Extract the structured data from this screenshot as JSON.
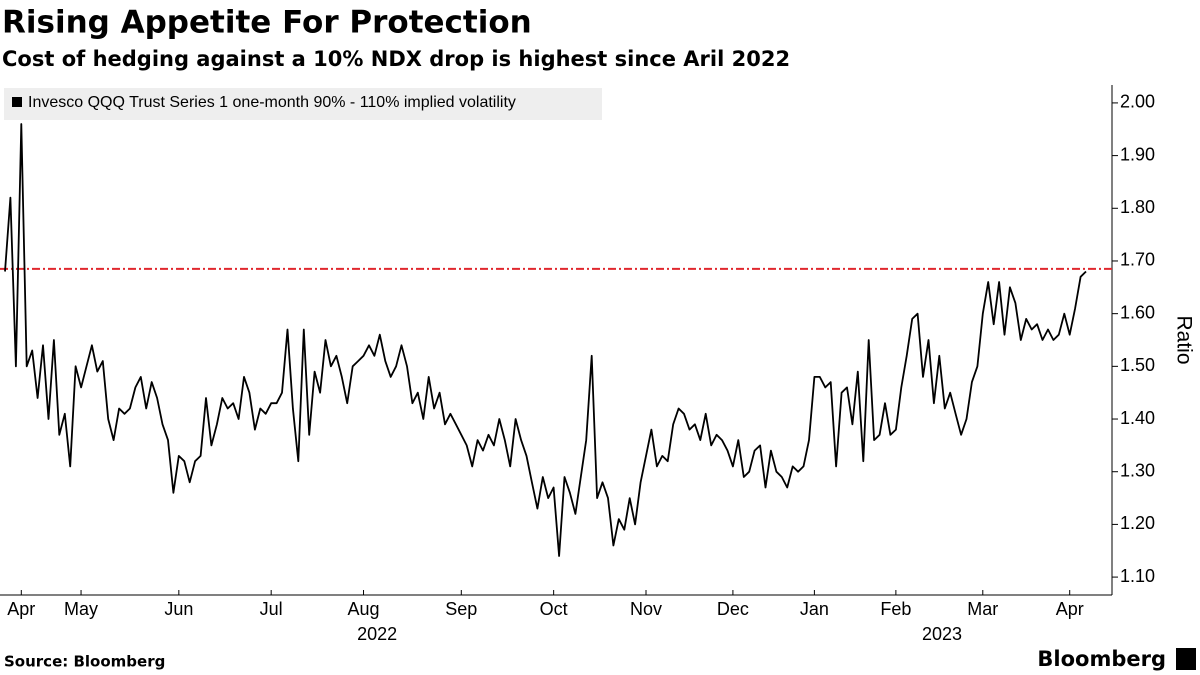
{
  "chart_data": {
    "type": "line",
    "title": "Rising Appetite For Protection",
    "subtitle": "Cost of hedging against a 10% NDX drop is highest since Aril 2022",
    "y_axis_label": "Ratio",
    "source": "Source: Bloomberg",
    "brand": "Bloomberg",
    "years": [
      "2022",
      "2023"
    ],
    "categories": [
      null,
      null,
      null,
      "Apr",
      null,
      null,
      null,
      null,
      null,
      null,
      null,
      null,
      null,
      null,
      "May",
      null,
      null,
      null,
      null,
      null,
      null,
      null,
      null,
      null,
      null,
      null,
      null,
      null,
      null,
      null,
      null,
      null,
      "Jun",
      null,
      null,
      null,
      null,
      null,
      null,
      null,
      null,
      null,
      null,
      null,
      null,
      null,
      null,
      null,
      null,
      "Jul",
      null,
      null,
      null,
      null,
      null,
      null,
      null,
      null,
      null,
      null,
      null,
      null,
      null,
      null,
      null,
      null,
      "Aug",
      null,
      null,
      null,
      null,
      null,
      null,
      null,
      null,
      null,
      null,
      null,
      null,
      null,
      null,
      null,
      null,
      null,
      "Sep",
      null,
      null,
      null,
      null,
      null,
      null,
      null,
      null,
      null,
      null,
      null,
      null,
      null,
      null,
      null,
      null,
      "Oct",
      null,
      null,
      null,
      null,
      null,
      null,
      null,
      null,
      null,
      null,
      null,
      null,
      null,
      null,
      null,
      null,
      "Nov",
      null,
      null,
      null,
      null,
      null,
      null,
      null,
      null,
      null,
      null,
      null,
      null,
      null,
      null,
      null,
      "Dec",
      null,
      null,
      null,
      null,
      null,
      null,
      null,
      null,
      null,
      null,
      null,
      null,
      null,
      null,
      "Jan",
      null,
      null,
      null,
      null,
      null,
      null,
      null,
      null,
      null,
      null,
      null,
      null,
      null,
      null,
      "Feb",
      null,
      null,
      null,
      null,
      null,
      null,
      null,
      null,
      null,
      null,
      null,
      null,
      null,
      null,
      null,
      "Mar",
      null,
      null,
      null,
      null,
      null,
      null,
      null,
      null,
      null,
      null,
      null,
      null,
      null,
      null,
      null,
      "Apr",
      null,
      null,
      null
    ],
    "series": [
      {
        "name": "Invesco QQQ Trust Series 1 one-month 90% - 110% implied volatility",
        "color": "#000000",
        "values": [
          1.68,
          1.82,
          1.5,
          1.96,
          1.5,
          1.53,
          1.44,
          1.54,
          1.4,
          1.55,
          1.37,
          1.41,
          1.31,
          1.5,
          1.46,
          1.5,
          1.54,
          1.49,
          1.51,
          1.4,
          1.36,
          1.42,
          1.41,
          1.42,
          1.46,
          1.48,
          1.42,
          1.47,
          1.44,
          1.39,
          1.36,
          1.26,
          1.33,
          1.32,
          1.28,
          1.32,
          1.33,
          1.44,
          1.35,
          1.39,
          1.44,
          1.42,
          1.43,
          1.4,
          1.48,
          1.45,
          1.38,
          1.42,
          1.41,
          1.43,
          1.43,
          1.45,
          1.57,
          1.42,
          1.32,
          1.57,
          1.37,
          1.49,
          1.45,
          1.55,
          1.5,
          1.52,
          1.48,
          1.43,
          1.5,
          1.51,
          1.52,
          1.54,
          1.52,
          1.56,
          1.51,
          1.48,
          1.5,
          1.54,
          1.5,
          1.43,
          1.45,
          1.4,
          1.48,
          1.42,
          1.45,
          1.39,
          1.41,
          1.39,
          1.37,
          1.35,
          1.31,
          1.36,
          1.34,
          1.37,
          1.35,
          1.4,
          1.36,
          1.31,
          1.4,
          1.36,
          1.33,
          1.28,
          1.23,
          1.29,
          1.25,
          1.27,
          1.14,
          1.29,
          1.26,
          1.22,
          1.29,
          1.36,
          1.52,
          1.25,
          1.28,
          1.25,
          1.16,
          1.21,
          1.19,
          1.25,
          1.2,
          1.28,
          1.33,
          1.38,
          1.31,
          1.33,
          1.32,
          1.39,
          1.42,
          1.41,
          1.38,
          1.39,
          1.36,
          1.41,
          1.35,
          1.37,
          1.36,
          1.34,
          1.31,
          1.36,
          1.29,
          1.3,
          1.34,
          1.35,
          1.27,
          1.34,
          1.3,
          1.29,
          1.27,
          1.31,
          1.3,
          1.31,
          1.36,
          1.48,
          1.48,
          1.46,
          1.47,
          1.31,
          1.45,
          1.46,
          1.39,
          1.49,
          1.32,
          1.55,
          1.36,
          1.37,
          1.43,
          1.37,
          1.38,
          1.46,
          1.52,
          1.59,
          1.6,
          1.48,
          1.55,
          1.43,
          1.52,
          1.42,
          1.45,
          1.41,
          1.37,
          1.4,
          1.47,
          1.5,
          1.6,
          1.66,
          1.58,
          1.66,
          1.56,
          1.65,
          1.62,
          1.55,
          1.59,
          1.57,
          1.58,
          1.55,
          1.57,
          1.55,
          1.56,
          1.6,
          1.56,
          1.61,
          1.67,
          1.68
        ]
      }
    ],
    "reference_line": {
      "value": 1.685,
      "color": "#e0282e"
    },
    "ylim": [
      1.066,
      2.034
    ],
    "yticks": [
      {
        "value": 1.1,
        "label": "1.10"
      },
      {
        "value": 1.2,
        "label": "1.20"
      },
      {
        "value": 1.3,
        "label": "1.30"
      },
      {
        "value": 1.4,
        "label": "1.40"
      },
      {
        "value": 1.5,
        "label": "1.50"
      },
      {
        "value": 1.6,
        "label": "1.60"
      },
      {
        "value": 1.7,
        "label": "1.70"
      },
      {
        "value": 1.8,
        "label": "1.80"
      },
      {
        "value": 1.9,
        "label": "1.90"
      },
      {
        "value": 2.0,
        "label": "2.00"
      }
    ],
    "grid": false
  }
}
